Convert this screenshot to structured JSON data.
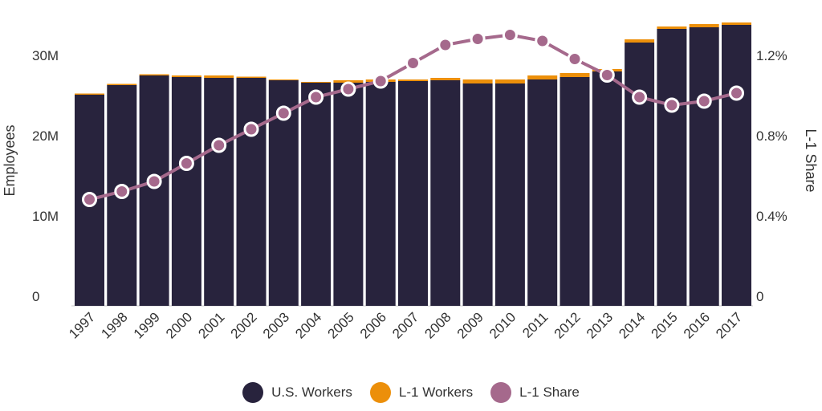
{
  "chart_data": {
    "type": "bar",
    "categories": [
      "1997",
      "1998",
      "1999",
      "2000",
      "2001",
      "2002",
      "2003",
      "2004",
      "2005",
      "2006",
      "2007",
      "2008",
      "2009",
      "2010",
      "2011",
      "2012",
      "2013",
      "2014",
      "2015",
      "2016",
      "2017"
    ],
    "series": [
      {
        "name": "U.S. Workers",
        "type": "bar",
        "stack": "employees",
        "axis": "left",
        "color": "#28233d",
        "values": [
          26.3,
          27.5,
          28.7,
          28.5,
          28.4,
          28.4,
          28.1,
          27.8,
          27.8,
          27.9,
          28.0,
          28.1,
          27.7,
          27.7,
          28.2,
          28.5,
          29.2,
          32.8,
          34.5,
          34.7,
          35.0
        ]
      },
      {
        "name": "L-1 Workers",
        "type": "bar",
        "stack": "employees",
        "axis": "left",
        "color": "#ec8f0a",
        "values": [
          0.15,
          0.15,
          0.15,
          0.2,
          0.3,
          0.15,
          0.1,
          0.1,
          0.3,
          0.3,
          0.2,
          0.3,
          0.5,
          0.5,
          0.5,
          0.5,
          0.3,
          0.4,
          0.3,
          0.4,
          0.3
        ]
      },
      {
        "name": "L-1 Share",
        "type": "line",
        "axis": "right",
        "color": "#a5698c",
        "values": [
          0.53,
          0.57,
          0.62,
          0.71,
          0.8,
          0.88,
          0.96,
          1.04,
          1.08,
          1.12,
          1.21,
          1.3,
          1.33,
          1.35,
          1.32,
          1.23,
          1.15,
          1.04,
          1.0,
          1.02,
          1.06
        ]
      }
    ],
    "ylabel": "Employees",
    "y2label": "L-1 Share",
    "ylim": [
      0,
      30
    ],
    "yticks": [
      {
        "v": 0,
        "label": "0"
      },
      {
        "v": 10,
        "label": "10M"
      },
      {
        "v": 20,
        "label": "20M"
      },
      {
        "v": 30,
        "label": "30M"
      }
    ],
    "y2lim": [
      0,
      1.2
    ],
    "y2ticks": [
      {
        "v": 0,
        "label": "0"
      },
      {
        "v": 0.4,
        "label": "0.4%"
      },
      {
        "v": 0.8,
        "label": "0.8%"
      },
      {
        "v": 1.2,
        "label": "1.2%"
      }
    ],
    "grid": false,
    "legend": "bottom"
  }
}
